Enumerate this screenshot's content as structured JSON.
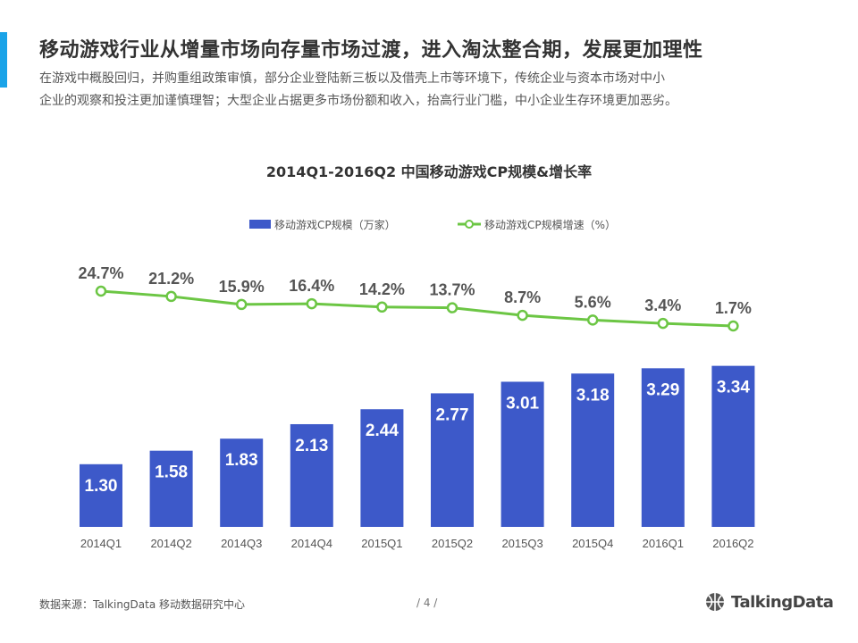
{
  "header": {
    "title": "移动游戏行业从增量市场向存量市场过渡，进入淘汰整合期，发展更加理性",
    "description_lines": [
      "在游戏中概股回归，并购重组政策审慎，部分企业登陆新三板以及借壳上市等环境下，传统企业与资本市场对中小",
      "企业的观察和投注更加谨慎理智；大型企业占据更多市场份额和收入，抬高行业门槛，中小企业生存环境更加恶劣。"
    ]
  },
  "colors": {
    "accent": "#1aa3e8",
    "bar": "#3d59c9",
    "line": "#6cc644",
    "value_text_line": "#555555",
    "value_text_bar": "#ffffff"
  },
  "chart_data": {
    "type": "bar",
    "title": "2014Q1-2016Q2 中国移动游戏CP规模&增长率",
    "categories": [
      "2014Q1",
      "2014Q2",
      "2014Q3",
      "2014Q4",
      "2015Q1",
      "2015Q2",
      "2015Q3",
      "2015Q4",
      "2016Q1",
      "2016Q2"
    ],
    "series": [
      {
        "name": "移动游戏CP规模（万家）",
        "type": "bar",
        "values": [
          1.3,
          1.58,
          1.83,
          2.13,
          2.44,
          2.77,
          3.01,
          3.18,
          3.29,
          3.34
        ],
        "labels": [
          "1.30",
          "1.58",
          "1.83",
          "2.13",
          "2.44",
          "2.77",
          "3.01",
          "3.18",
          "3.29",
          "3.34"
        ]
      },
      {
        "name": "移动游戏CP规模增速（%）",
        "type": "line",
        "values": [
          24.7,
          21.2,
          15.9,
          16.4,
          14.2,
          13.7,
          8.7,
          5.6,
          3.4,
          1.7
        ],
        "labels": [
          "24.7%",
          "21.2%",
          "15.9%",
          "16.4%",
          "14.2%",
          "13.7%",
          "8.7%",
          "5.6%",
          "3.4%",
          "1.7%"
        ]
      }
    ],
    "legend_position": "top-center",
    "grid": false
  },
  "footer": {
    "source": "数据来源：TalkingData  移动数据研究中心",
    "page": "/  4  /",
    "logo_text": "TalkingData",
    "logo_icon": "basketball-icon"
  }
}
